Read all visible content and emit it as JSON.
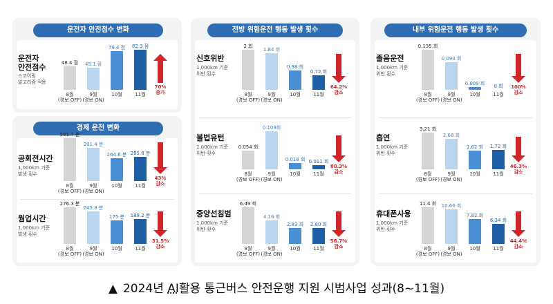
{
  "panels": [
    {
      "title": "운전자 안전점수 변화"
    },
    {
      "title": "경제 운전 변화"
    },
    {
      "title": "전방 위험운전 행동 발생 횟수"
    },
    {
      "title": "내부 위험운전 행동 발생 횟수"
    }
  ],
  "x_labels": [
    "8월\n(경보 OFF)",
    "9월\n(경보 ON)",
    "10월",
    "11월"
  ],
  "colors": {
    "aug": "#d3d4d6",
    "sep": "#b9d5f0",
    "oct": "#4a8fd6",
    "nov": "#1f5fa8",
    "arrow": "#d0262b"
  },
  "chart_data": [
    {
      "type": "bar",
      "title": "운전자\n안전점수",
      "subtitle": "스코어링\n알고리즘 적용",
      "categories": [
        "8월 (경보 OFF)",
        "9월 (경보 ON)",
        "10월",
        "11월"
      ],
      "values": [
        48.4,
        45.1,
        79.4,
        82.3
      ],
      "labels": [
        "48.4 점",
        "45.1 점",
        "79.4 점",
        "82.3 점"
      ],
      "change": "70%\n증가",
      "direction": "up"
    },
    {
      "type": "bar",
      "title": "공회전시간",
      "subtitle": "1,000km 기준\n발생 횟수",
      "categories": [
        "8월 (경보 OFF)",
        "9월 (경보 ON)",
        "10월",
        "11월"
      ],
      "values": [
        501.7,
        391.4,
        264.6,
        285.8
      ],
      "labels": [
        "501.7 분",
        "391.4 분",
        "264.6 분",
        "285.8 분"
      ],
      "change": "43%\n감소",
      "direction": "down"
    },
    {
      "type": "bar",
      "title": "웜업시간",
      "subtitle": "1,000km 기준\n발생 횟수",
      "categories": [
        "8월 (경보 OFF)",
        "9월 (경보 ON)",
        "10월",
        "11월"
      ],
      "values": [
        276.3,
        245.8,
        175,
        189.2
      ],
      "labels": [
        "276.3 분",
        "245.8 분",
        "175 분",
        "189.2 분"
      ],
      "change": "31.5%\n감소",
      "direction": "down"
    },
    {
      "type": "bar",
      "title": "신호위반",
      "subtitle": "1,000km 기준\n위반 횟수",
      "categories": [
        "8월 (경보 OFF)",
        "9월 (경보 ON)",
        "10월",
        "11월"
      ],
      "values": [
        2,
        1.84,
        0.98,
        0.72
      ],
      "labels": [
        "2 회",
        "1.84 회",
        "0.98 회",
        "0.72 회"
      ],
      "change": "64.2%\n감소",
      "direction": "down"
    },
    {
      "type": "bar",
      "title": "불법유턴",
      "subtitle": "1,000km 기준\n위반 횟수",
      "categories": [
        "8월 (경보 OFF)",
        "9월 (경보 ON)",
        "10월",
        "11월"
      ],
      "values": [
        0.054,
        0.109,
        0.018,
        0.011
      ],
      "labels": [
        "0.054 회",
        "0.109회",
        "0.018 회",
        "0.011 회"
      ],
      "change": "80.3%\n감소",
      "direction": "down"
    },
    {
      "type": "bar",
      "title": "중앙선침범",
      "subtitle": "1,000km 기준\n위반 횟수",
      "categories": [
        "8월 (경보 OFF)",
        "9월 (경보 ON)",
        "10월",
        "11월"
      ],
      "values": [
        6.49,
        4.16,
        2.83,
        2.8
      ],
      "labels": [
        "6.49 회",
        "4.16 회",
        "2.83 회",
        "2.80 회"
      ],
      "change": "56.7%\n감소",
      "direction": "down"
    },
    {
      "type": "bar",
      "title": "졸음운전",
      "subtitle": "1,000km 기준\n위반 횟수",
      "categories": [
        "8월 (경보 OFF)",
        "9월 (경보 ON)",
        "10월",
        "11월"
      ],
      "values": [
        0.135,
        0.094,
        0.009,
        0
      ],
      "labels": [
        "0.135 회",
        "0.094 회",
        "0.009 회",
        "0 회"
      ],
      "change": "100%\n감소",
      "direction": "down"
    },
    {
      "type": "bar",
      "title": "흡연",
      "subtitle": "1,000km 기준\n위반 횟수",
      "categories": [
        "8월 (경보 OFF)",
        "9월 (경보 ON)",
        "10월",
        "11월"
      ],
      "values": [
        3.21,
        2.68,
        1.62,
        1.72
      ],
      "labels": [
        "3.21 회",
        "2.68 회",
        "1.62 회",
        "1.72 회"
      ],
      "change": "46.3%\n감소",
      "direction": "down"
    },
    {
      "type": "bar",
      "title": "휴대폰사용",
      "subtitle": "1,000km 기준\n위반 횟수",
      "categories": [
        "8월 (경보 OFF)",
        "9월 (경보 ON)",
        "10월",
        "11월"
      ],
      "values": [
        11.4,
        10.66,
        7.82,
        6.34
      ],
      "labels": [
        "11.4 회",
        "10.66 회",
        "7.82 회",
        "6.34 회"
      ],
      "change": "44.4%\n감소",
      "direction": "down"
    }
  ],
  "caption": {
    "triangle": "▲",
    "text_before": "2024년 ",
    "ai": "AI",
    "text_after": "활용 통근버스 안전운행 지원 시범사업 성과(8~11월)"
  }
}
